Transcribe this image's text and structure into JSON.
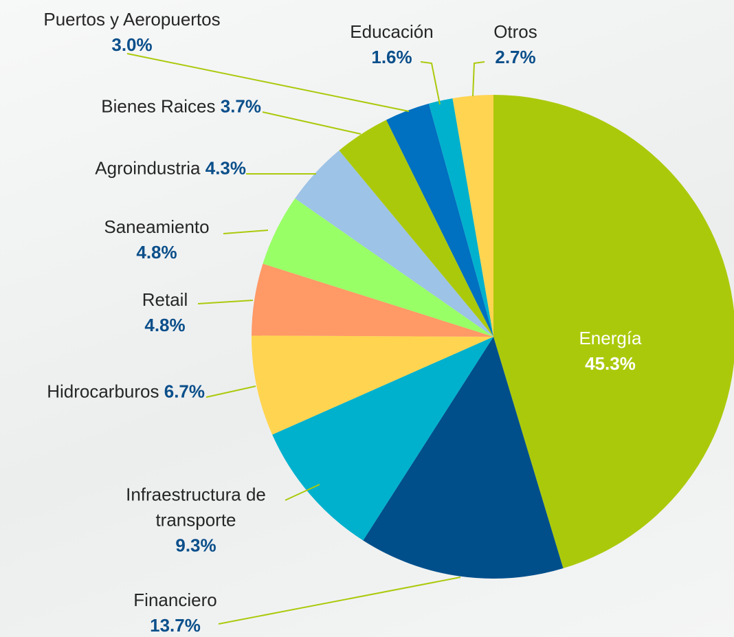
{
  "chart_data": {
    "type": "pie",
    "categories": [
      "Energía",
      "Financiero",
      "Infraestructura de transporte",
      "Hidrocarburos",
      "Retail",
      "Saneamiento",
      "Agroindustria",
      "Bienes Raices",
      "Puertos y Aeropuertos",
      "Educación",
      "Otros"
    ],
    "values": [
      45.3,
      13.7,
      9.3,
      6.7,
      4.8,
      4.8,
      4.3,
      3.7,
      3.0,
      1.6,
      2.7
    ],
    "value_labels": [
      "45.3%",
      "13.7%",
      "9.3%",
      "6.7%",
      "4.8%",
      "4.8%",
      "4.3%",
      "3.7%",
      "3.0%",
      "1.6%",
      "2.7%"
    ],
    "colors": [
      "#abc90b",
      "#004f8b",
      "#00b1cd",
      "#ffd450",
      "#ff9966",
      "#99ff66",
      "#9dc3e6",
      "#abc90b",
      "#0070c0",
      "#00b1cd",
      "#ffd450"
    ]
  }
}
